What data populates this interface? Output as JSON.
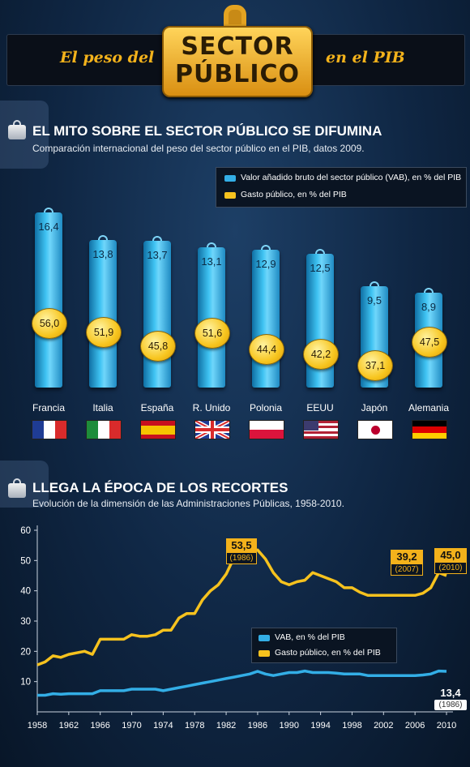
{
  "header": {
    "left_text": "El peso del",
    "badge_line1": "SECTOR",
    "badge_line2": "PÚBLICO",
    "right_text": "en el PIB"
  },
  "section1": {
    "title": "EL MITO SOBRE EL SECTOR PÚBLICO SE DIFUMINA",
    "subtitle": "Comparación internacional del peso del sector público en el PIB, datos 2009.",
    "legend_vab": "Valor añadido bruto del sector público (VAB), en % del PIB",
    "legend_gasto": "Gasto público, en % del PIB"
  },
  "section2": {
    "title": "LLEGA LA ÉPOCA DE LOS RECORTES",
    "subtitle": "Evolución de la dimensión de las Administraciones Públicas, 1958-2010.",
    "legend_vab": "VAB, en % del PIB",
    "legend_gasto": "Gasto público, en % del PIB"
  },
  "colors": {
    "vab": "#33aee6",
    "gasto": "#f6c21e",
    "header_gold": "#f3b21b"
  },
  "chart_data": [
    {
      "type": "bar",
      "categories": [
        "Francia",
        "Italia",
        "España",
        "R. Unido",
        "Polonia",
        "EEUU",
        "Japón",
        "Alemania"
      ],
      "series": [
        {
          "name": "Valor añadido bruto del sector público (VAB), en % del PIB",
          "values": [
            16.4,
            13.8,
            13.7,
            13.1,
            12.9,
            12.5,
            9.5,
            8.9
          ],
          "labels": [
            "16,4",
            "13,8",
            "13,7",
            "13,1",
            "12,9",
            "12,5",
            "9,5",
            "8,9"
          ]
        },
        {
          "name": "Gasto público, en % del PIB",
          "values": [
            56.0,
            51.9,
            45.8,
            51.6,
            44.4,
            42.2,
            37.1,
            47.5
          ],
          "labels": [
            "56,0",
            "51,9",
            "45,8",
            "51,6",
            "44,4",
            "42,2",
            "37,1",
            "47,5"
          ]
        }
      ],
      "flags": [
        {
          "type": "v",
          "colors": [
            "#1f3c94",
            "#ffffff",
            "#d92b2b"
          ]
        },
        {
          "type": "v",
          "colors": [
            "#1e8c3a",
            "#ffffff",
            "#d92b2b"
          ]
        },
        {
          "type": "h",
          "colors": [
            "#c8101e",
            "#f6c400",
            "#c8101e"
          ],
          "weights": [
            1,
            2,
            1
          ]
        },
        {
          "type": "uk",
          "colors": [
            "#1f3c94",
            "#ffffff",
            "#d92b2b"
          ]
        },
        {
          "type": "h",
          "colors": [
            "#ffffff",
            "#dc143c"
          ],
          "weights": [
            1,
            1
          ]
        },
        {
          "type": "us",
          "colors": [
            "#b22234",
            "#ffffff",
            "#3c3b6e"
          ]
        },
        {
          "type": "jp",
          "colors": [
            "#ffffff",
            "#bc002d"
          ]
        },
        {
          "type": "h",
          "colors": [
            "#000000",
            "#dd0000",
            "#ffce00"
          ],
          "weights": [
            1,
            1,
            1
          ]
        }
      ]
    },
    {
      "type": "line",
      "x": [
        1958,
        1959,
        1960,
        1961,
        1962,
        1963,
        1964,
        1965,
        1966,
        1967,
        1968,
        1969,
        1970,
        1971,
        1972,
        1973,
        1974,
        1975,
        1976,
        1977,
        1978,
        1979,
        1980,
        1981,
        1982,
        1983,
        1984,
        1985,
        1986,
        1987,
        1988,
        1989,
        1990,
        1991,
        1992,
        1993,
        1994,
        1995,
        1996,
        1997,
        1998,
        1999,
        2000,
        2001,
        2002,
        2003,
        2004,
        2005,
        2006,
        2007,
        2008,
        2009,
        2010
      ],
      "series": [
        {
          "name": "Gasto público, en % del PIB",
          "values": [
            15.5,
            16.5,
            18.5,
            18,
            19,
            19.5,
            20,
            19,
            24,
            24,
            24,
            24,
            25.5,
            25,
            25,
            25.5,
            27,
            27,
            31,
            32.5,
            32.5,
            37,
            40,
            42,
            45.5,
            51,
            52,
            53,
            53.5,
            50.5,
            46,
            43,
            42,
            43,
            43.5,
            46,
            45,
            44,
            43,
            41,
            41,
            39.5,
            38.5,
            38.5,
            38.5,
            38.5,
            38.5,
            38.5,
            38.5,
            39.2,
            41,
            46,
            45
          ]
        },
        {
          "name": "VAB, en % del PIB",
          "values": [
            5.5,
            5.5,
            6,
            5.8,
            6,
            6,
            6,
            6,
            7,
            7,
            7,
            7,
            7.5,
            7.5,
            7.5,
            7.5,
            7,
            7.5,
            8,
            8.5,
            9,
            9.5,
            10,
            10.5,
            11,
            11.5,
            12,
            12.5,
            13.4,
            12.5,
            12,
            12.5,
            13,
            13,
            13.5,
            13,
            13,
            13,
            12.8,
            12.5,
            12.5,
            12.5,
            12,
            12,
            12,
            12,
            12,
            12,
            12,
            12.2,
            12.5,
            13.5,
            13.4
          ]
        }
      ],
      "ylim": [
        0,
        60
      ],
      "yticks": [
        10,
        20,
        30,
        40,
        50,
        60
      ],
      "xticks": [
        1958,
        1962,
        1966,
        1970,
        1974,
        1978,
        1982,
        1986,
        1990,
        1994,
        1998,
        2002,
        2006,
        2010
      ],
      "annotations": [
        {
          "value": "53,5",
          "year": "(1986)",
          "series": "gasto",
          "x": 1986,
          "y": 53.5
        },
        {
          "value": "39,2",
          "year": "(2007)",
          "series": "gasto",
          "x": 2007,
          "y": 39.2
        },
        {
          "value": "45,0",
          "year": "(2010)",
          "series": "gasto",
          "x": 2010,
          "y": 45.0
        },
        {
          "value": "13,4",
          "year": "(1986)",
          "series": "vab",
          "x": 2010,
          "y": 13.4
        }
      ],
      "grid": false,
      "legend_position": "center"
    }
  ]
}
